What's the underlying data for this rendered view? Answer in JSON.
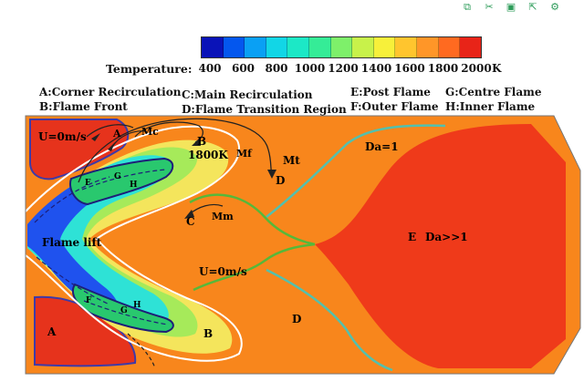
{
  "toolbar": {
    "items": [
      {
        "icon": "copy-icon",
        "glyph": "⧉"
      },
      {
        "icon": "cut-icon",
        "glyph": "✂"
      },
      {
        "icon": "save-icon",
        "glyph": "▣"
      },
      {
        "icon": "export-icon",
        "glyph": "⇱"
      },
      {
        "icon": "settings-icon",
        "glyph": "⚙"
      }
    ]
  },
  "colorbar": {
    "title": "Temperature:",
    "unit": "K",
    "ticks": [
      "400",
      "600",
      "800",
      "1000",
      "1200",
      "1400",
      "1600",
      "1800",
      "2000"
    ],
    "colors": [
      "#0a13b8",
      "#0457ee",
      "#0aa0f4",
      "#12d6e6",
      "#1ce8c6",
      "#35ec97",
      "#7ef06a",
      "#c8f24a",
      "#f7f03a",
      "#ffc52e",
      "#ff9628",
      "#ff6a20",
      "#e82418"
    ]
  },
  "legend": {
    "a": "A:Corner Recirculation",
    "b": "B:Flame Front",
    "c": "C:Main Recirculation",
    "d": "D:Flame Transition Region",
    "e": "E:Post Flame",
    "f": "F:Outer Flame",
    "g": "G:Centre Flame",
    "h": "H:Inner Flame"
  },
  "labels": {
    "u_top": "U=0m/s",
    "a_small": "A",
    "mc": "Mc",
    "b_top": "B",
    "temp1800": "1800K",
    "mf": "Mf",
    "mt": "Mt",
    "d_top": "D",
    "c": "C",
    "mm": "Mm",
    "g_top": "G",
    "h_top": "H",
    "f_top": "F",
    "flame_lift": "Flame lift",
    "u_mid": "U=0m/s",
    "da1": "Da=1",
    "e": "E",
    "da_big": "Da>>1",
    "d_bottom": "D",
    "b_bottom": "B",
    "a_bottom": "A",
    "f_bottom": "F",
    "g_bottom": "G",
    "h_bottom": "H"
  },
  "colors": {
    "background_flow": "#f8861c",
    "post_flame": "#ef3a1a",
    "corner_recirculation": "#e6331c",
    "da1_line": "#53c0ad",
    "transition_line": "#56b83a",
    "isotherm_line": "#ffffff"
  }
}
